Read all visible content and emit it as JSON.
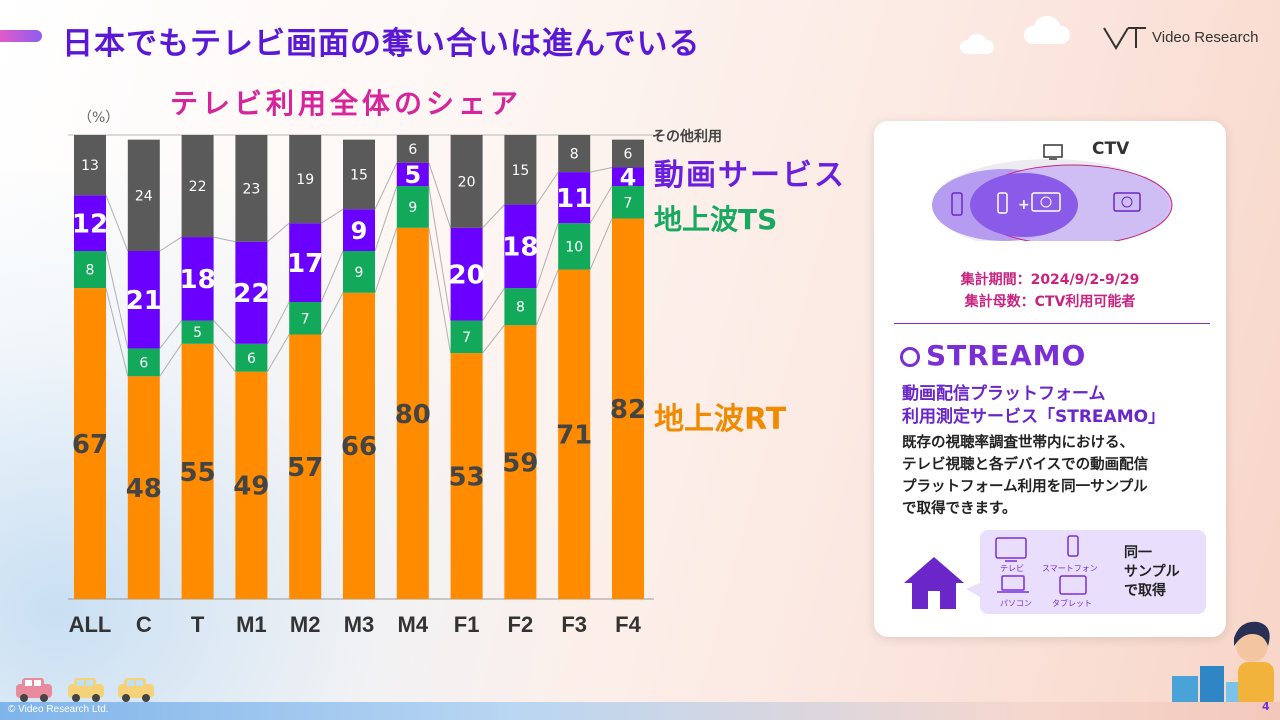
{
  "page": {
    "title": "日本でもテレビ画面の奪い合いは進んでいる",
    "logo": "Video Research",
    "copyright": "© Video Research Ltd.",
    "page_number": "4"
  },
  "chart_data": {
    "type": "bar",
    "stacked": true,
    "title": "テレビ利用全体のシェア",
    "unit_label": "（%）",
    "categories": [
      "ALL",
      "C",
      "T",
      "M1",
      "M2",
      "M3",
      "M4",
      "F1",
      "F2",
      "F3",
      "F4"
    ],
    "series": [
      {
        "name": "地上波RT",
        "color": "#ff8c00",
        "values": [
          67,
          48,
          55,
          49,
          57,
          66,
          80,
          53,
          59,
          71,
          82
        ]
      },
      {
        "name": "地上波TS",
        "color": "#12a95a",
        "values": [
          8,
          6,
          5,
          6,
          7,
          9,
          9,
          7,
          8,
          10,
          7
        ]
      },
      {
        "name": "動画サービス",
        "color": "#6a00ff",
        "values": [
          12,
          21,
          18,
          22,
          17,
          9,
          5,
          20,
          18,
          11,
          4
        ]
      },
      {
        "name": "その他利用",
        "color": "#5a5a5a",
        "values": [
          13,
          24,
          22,
          23,
          19,
          15,
          6,
          20,
          15,
          8,
          6
        ]
      }
    ],
    "ylim": [
      0,
      100
    ],
    "legend_placement": "right"
  },
  "legend": {
    "other": "その他利用",
    "video": "動画サービス",
    "ts": "地上波TS",
    "rt": "地上波RT"
  },
  "panel": {
    "ctv_label": "CTV",
    "period": "集計期間：2024/9/2-9/29",
    "population": "集計母数：CTV利用可能者",
    "streamo_logo": "STREAMO",
    "streamo_heading": "動画配信プラットフォーム\n利用測定サービス「STREAMO」",
    "streamo_desc": "既存の視聴率調査世帯内における、\nテレビ視聴と各デバイスでの動画配信\nプラットフォーム利用を同一サンプル\nで取得できます。",
    "devices": [
      "テレビ",
      "スマートフォン",
      "パソコン",
      "タブレット"
    ],
    "same_sample": "同一\nサンプル\nで取得"
  },
  "colors": {
    "title": "#5a18d6",
    "chart_title": "#d6259b",
    "rt": "#ff8c00",
    "ts": "#12a95a",
    "video": "#6a00ff",
    "other": "#5a5a5a"
  }
}
